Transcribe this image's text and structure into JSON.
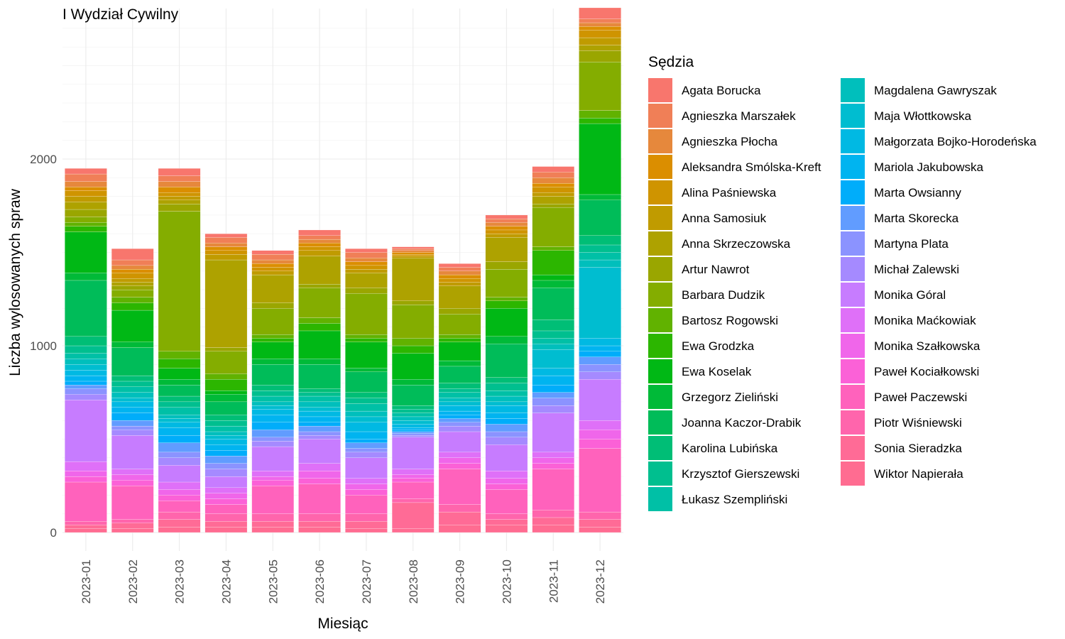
{
  "chart_data": {
    "type": "bar",
    "stacked": true,
    "title": "I Wydział Cywilny",
    "xlabel": "Miesiąc",
    "ylabel": "Liczba wylosowanych spraw",
    "ylim": [
      0,
      2800
    ],
    "yticks": [
      0,
      1000,
      2000
    ],
    "grid": true,
    "legend_title": "Sędzia",
    "legend_position": "right",
    "categories": [
      "2023-01",
      "2023-02",
      "2023-03",
      "2023-04",
      "2023-05",
      "2023-06",
      "2023-07",
      "2023-08",
      "2023-09",
      "2023-10",
      "2023-11",
      "2023-12"
    ],
    "series": [
      {
        "name": "Agata Borucka",
        "color": "#F8766D",
        "values": [
          30,
          60,
          40,
          20,
          20,
          30,
          20,
          10,
          20,
          20,
          30,
          60
        ]
      },
      {
        "name": "Agnieszka Marszałek",
        "color": "#F07F57",
        "values": [
          40,
          30,
          30,
          30,
          30,
          20,
          30,
          10,
          20,
          20,
          30,
          20
        ]
      },
      {
        "name": "Agnieszka Płocha",
        "color": "#E6883C",
        "values": [
          30,
          20,
          30,
          20,
          20,
          20,
          20,
          10,
          20,
          20,
          30,
          20
        ]
      },
      {
        "name": "Aleksandra Smólska-Kreft",
        "color": "#DB8E00",
        "values": [
          20,
          20,
          30,
          20,
          20,
          20,
          20,
          10,
          20,
          20,
          20,
          20
        ]
      },
      {
        "name": "Alina Paśniewska",
        "color": "#CF9400",
        "values": [
          30,
          30,
          20,
          20,
          20,
          20,
          20,
          10,
          20,
          20,
          30,
          40
        ]
      },
      {
        "name": "Anna Samosiuk",
        "color": "#C09B00",
        "values": [
          30,
          20,
          20,
          30,
          20,
          30,
          20,
          10,
          20,
          20,
          20,
          40
        ]
      },
      {
        "name": "Anna Skrzeczowska",
        "color": "#AEA200",
        "values": [
          40,
          20,
          20,
          470,
          150,
          150,
          80,
          230,
          120,
          130,
          40,
          30
        ]
      },
      {
        "name": "Artur Nawrot",
        "color": "#9AA600",
        "values": [
          40,
          20,
          40,
          20,
          30,
          20,
          30,
          20,
          30,
          40,
          20,
          60
        ]
      },
      {
        "name": "Barbara Dudzik",
        "color": "#84AD00",
        "values": [
          30,
          40,
          750,
          120,
          140,
          160,
          220,
          180,
          110,
          150,
          210,
          260
        ]
      },
      {
        "name": "Bartosz Rogowski",
        "color": "#61B200",
        "values": [
          20,
          30,
          40,
          30,
          20,
          30,
          20,
          40,
          20,
          20,
          20,
          40
        ]
      },
      {
        "name": "Ewa Grodzka",
        "color": "#2CB600",
        "values": [
          30,
          40,
          50,
          60,
          20,
          40,
          20,
          40,
          20,
          40,
          130,
          30
        ]
      },
      {
        "name": "Ewa Koselak",
        "color": "#00B815",
        "values": [
          220,
          170,
          60,
          20,
          90,
          150,
          140,
          140,
          100,
          150,
          30,
          380
        ]
      },
      {
        "name": "Grzegorz Zieliński",
        "color": "#00BA38",
        "values": [
          40,
          30,
          30,
          40,
          30,
          30,
          20,
          30,
          30,
          40,
          40,
          30
        ]
      },
      {
        "name": "Joanna Kaczor-Drabik",
        "color": "#00BC59",
        "values": [
          300,
          150,
          60,
          70,
          110,
          130,
          110,
          110,
          90,
          180,
          170,
          190
        ]
      },
      {
        "name": "Karolina Lubińska",
        "color": "#00BE76",
        "values": [
          50,
          30,
          30,
          30,
          30,
          20,
          30,
          20,
          30,
          30,
          60,
          50
        ]
      },
      {
        "name": "Krzysztof Gierszewski",
        "color": "#00BF8F",
        "values": [
          40,
          30,
          30,
          30,
          30,
          20,
          30,
          20,
          20,
          40,
          40,
          40
        ]
      },
      {
        "name": "Łukasz Szempliński",
        "color": "#00C0A6",
        "values": [
          30,
          30,
          40,
          30,
          30,
          30,
          40,
          20,
          30,
          30,
          30,
          40
        ]
      },
      {
        "name": "Magdalena Gawryszak",
        "color": "#00BFBC",
        "values": [
          30,
          30,
          20,
          20,
          20,
          30,
          30,
          20,
          20,
          30,
          30,
          40
        ]
      },
      {
        "name": "Maja Włottkowska",
        "color": "#00BDD0",
        "values": [
          30,
          20,
          20,
          20,
          20,
          20,
          30,
          20,
          20,
          20,
          100,
          380
        ]
      },
      {
        "name": "Małgorzata Bojko-Horodeńska",
        "color": "#00B9E3",
        "values": [
          30,
          30,
          30,
          30,
          30,
          30,
          50,
          20,
          30,
          40,
          40,
          40
        ]
      },
      {
        "name": "Mariola Jakubowska",
        "color": "#00B4F0",
        "values": [
          30,
          30,
          40,
          30,
          40,
          30,
          40,
          10,
          20,
          30,
          50,
          30
        ]
      },
      {
        "name": "Marta Owsianny",
        "color": "#00ADFA",
        "values": [
          20,
          40,
          40,
          30,
          40,
          20,
          20,
          10,
          20,
          30,
          40,
          30
        ]
      },
      {
        "name": "Marta Skorecka",
        "color": "#619CFF",
        "values": [
          20,
          30,
          50,
          40,
          40,
          30,
          30,
          10,
          20,
          40,
          30,
          40
        ]
      },
      {
        "name": "Martyna Plata",
        "color": "#8B93FF",
        "values": [
          30,
          20,
          30,
          30,
          20,
          20,
          20,
          10,
          20,
          30,
          40,
          40
        ]
      },
      {
        "name": "Michał Zalewski",
        "color": "#A58AFF",
        "values": [
          30,
          30,
          40,
          40,
          30,
          20,
          30,
          10,
          30,
          40,
          40,
          40
        ]
      },
      {
        "name": "Monika Góral",
        "color": "#C77CFF",
        "values": [
          330,
          180,
          90,
          60,
          130,
          130,
          110,
          170,
          110,
          140,
          210,
          220
        ]
      },
      {
        "name": "Monika Maćkowiak",
        "color": "#DF70F8",
        "values": [
          50,
          30,
          40,
          30,
          30,
          40,
          30,
          30,
          30,
          40,
          30,
          50
        ]
      },
      {
        "name": "Monika Szałkowska",
        "color": "#F066EA",
        "values": [
          30,
          30,
          30,
          30,
          20,
          40,
          30,
          20,
          30,
          30,
          30,
          50
        ]
      },
      {
        "name": "Paweł Kociałkowski",
        "color": "#FB61D7",
        "values": [
          30,
          30,
          30,
          30,
          30,
          30,
          30,
          20,
          30,
          30,
          30,
          50
        ]
      },
      {
        "name": "Paweł Paczewski",
        "color": "#FF62BC",
        "values": [
          210,
          180,
          60,
          50,
          150,
          160,
          100,
          90,
          190,
          130,
          220,
          340
        ]
      },
      {
        "name": "Piotr Wiśniewski",
        "color": "#FF65AC",
        "values": [
          20,
          20,
          40,
          40,
          40,
          40,
          40,
          20,
          40,
          30,
          40,
          40
        ]
      },
      {
        "name": "Sonia Sieradzka",
        "color": "#FF6B96",
        "values": [
          20,
          30,
          40,
          30,
          30,
          30,
          40,
          140,
          70,
          30,
          40,
          40
        ]
      },
      {
        "name": "Wiktor Napierała",
        "color": "#FF6C91",
        "values": [
          20,
          20,
          30,
          30,
          30,
          30,
          20,
          20,
          40,
          40,
          40,
          30
        ]
      }
    ]
  }
}
